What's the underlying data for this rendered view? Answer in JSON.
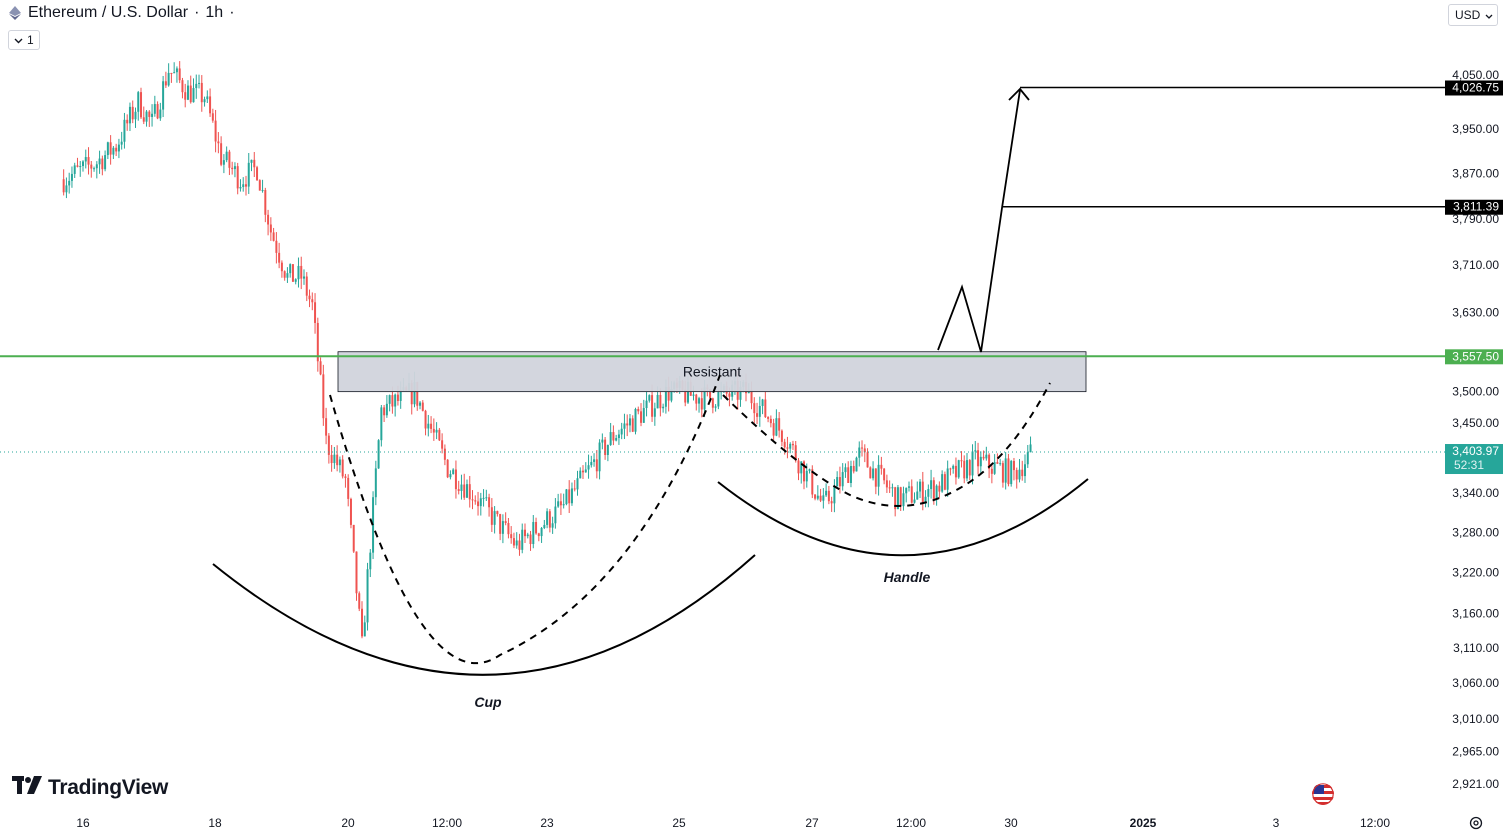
{
  "header": {
    "title": "Ethereum / U.S. Dollar",
    "interval": "1h",
    "separator": "·",
    "collapse_label": "1"
  },
  "currency_selector": {
    "value": "USD"
  },
  "branding": {
    "logo_text": "TradingView"
  },
  "colors": {
    "up": "#26a69a",
    "down": "#ef5350",
    "resistance": "#4caf50",
    "zone_fill": "#d1d4dc",
    "current": "#26a69a",
    "target": "#000000"
  },
  "chart_data": {
    "type": "candlestick",
    "title": "Ethereum / U.S. Dollar",
    "y_axis": {
      "ticks": [
        "4,050.00",
        "3,950.00",
        "3,870.00",
        "3,790.00",
        "3,710.00",
        "3,630.00",
        "3,500.00",
        "3,450.00",
        "3,340.00",
        "3,280.00",
        "3,220.00",
        "3,160.00",
        "3,110.00",
        "3,060.00",
        "3,010.00",
        "2,965.00",
        "2,921.00"
      ],
      "range": [
        2900,
        4130
      ],
      "scale": "log"
    },
    "x_axis": {
      "ticks": [
        "16",
        "18",
        "20",
        "12:00",
        "23",
        "25",
        "27",
        "12:00",
        "30",
        "2025",
        "3",
        "12:00"
      ],
      "bold_ticks": [
        "2025"
      ]
    },
    "series": [
      {
        "type": "ohlc-path",
        "start": "2024-12-15 17:00",
        "interval": "1h",
        "close_path": [
          {
            "t": "2024-12-15 17:00",
            "v": 3860
          },
          {
            "t": "2024-12-16 05:00",
            "v": 3890
          },
          {
            "t": "2024-12-16 12:00",
            "v": 3920
          },
          {
            "t": "2024-12-16 20:00",
            "v": 4000
          },
          {
            "t": "2024-12-17 01:00",
            "v": 3960
          },
          {
            "t": "2024-12-17 07:00",
            "v": 4060
          },
          {
            "t": "2024-12-17 14:00",
            "v": 4020
          },
          {
            "t": "2024-12-17 20:00",
            "v": 4010
          },
          {
            "t": "2024-12-18 02:00",
            "v": 3900
          },
          {
            "t": "2024-12-18 09:00",
            "v": 3860
          },
          {
            "t": "2024-12-18 15:00",
            "v": 3880
          },
          {
            "t": "2024-12-18 20:00",
            "v": 3770
          },
          {
            "t": "2024-12-19 02:00",
            "v": 3690
          },
          {
            "t": "2024-12-19 07:00",
            "v": 3690
          },
          {
            "t": "2024-12-19 11:00",
            "v": 3640
          },
          {
            "t": "2024-12-19 16:00",
            "v": 3420
          },
          {
            "t": "2024-12-19 23:00",
            "v": 3360
          },
          {
            "t": "2024-12-20 05:00",
            "v": 3110
          },
          {
            "t": "2024-12-20 12:00",
            "v": 3470
          },
          {
            "t": "2024-12-21 00:00",
            "v": 3500
          },
          {
            "t": "2024-12-21 12:00",
            "v": 3380
          },
          {
            "t": "2024-12-21 23:00",
            "v": 3330
          },
          {
            "t": "2024-12-22 13:00",
            "v": 3260
          },
          {
            "t": "2024-12-23 06:00",
            "v": 3320
          },
          {
            "t": "2024-12-24 00:00",
            "v": 3430
          },
          {
            "t": "2024-12-24 20:00",
            "v": 3500
          },
          {
            "t": "2024-12-25 10:00",
            "v": 3490
          },
          {
            "t": "2024-12-26 00:00",
            "v": 3500
          },
          {
            "t": "2024-12-26 14:00",
            "v": 3430
          },
          {
            "t": "2024-12-27 04:00",
            "v": 3320
          },
          {
            "t": "2024-12-27 17:00",
            "v": 3400
          },
          {
            "t": "2024-12-28 07:00",
            "v": 3330
          },
          {
            "t": "2024-12-28 21:00",
            "v": 3350
          },
          {
            "t": "2024-12-29 11:00",
            "v": 3390
          },
          {
            "t": "2024-12-30 01:00",
            "v": 3370
          },
          {
            "t": "2024-12-30 07:00",
            "v": 3400
          }
        ]
      }
    ],
    "resistance": {
      "level": 3557.5,
      "label": "3,557.50",
      "zone": [
        3500,
        3565
      ],
      "zone_label": "Resistant"
    },
    "current_price": {
      "value": 3403.97,
      "label": "3,403.97",
      "countdown": "52:31"
    },
    "targets": [
      {
        "level": 4026.75,
        "label": "4,026.75"
      },
      {
        "level": 3811.39,
        "label": "3,811.39"
      }
    ],
    "annotations": [
      {
        "text": "Cup"
      },
      {
        "text": "Handle"
      }
    ]
  }
}
